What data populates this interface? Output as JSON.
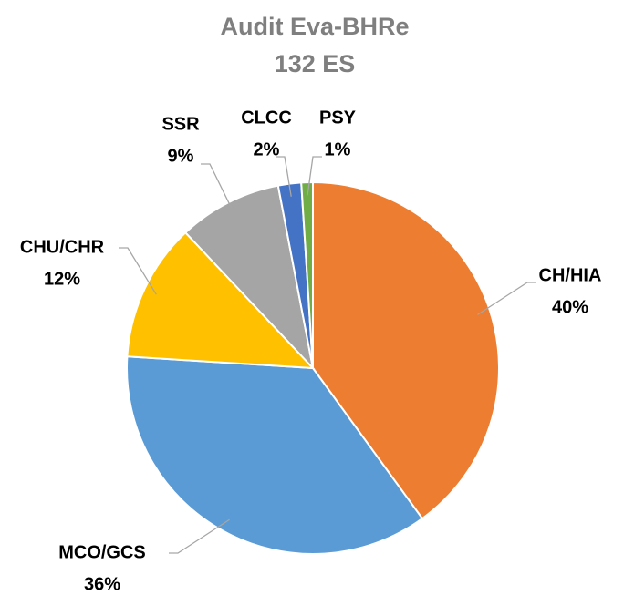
{
  "chart_data": {
    "type": "pie",
    "title": "Audit Eva-BHRe",
    "subtitle": "132 ES",
    "categories": [
      "CH/HIA",
      "MCO/GCS",
      "CHU/CHR",
      "SSR",
      "CLCC",
      "PSY"
    ],
    "values": [
      40,
      36,
      12,
      9,
      2,
      1
    ],
    "value_labels": [
      "40%",
      "36%",
      "12%",
      "9%",
      "2%",
      "1%"
    ],
    "colors": [
      "#ED7D31",
      "#5B9BD5",
      "#FFC000",
      "#A5A5A5",
      "#4472C4",
      "#70AD47"
    ]
  }
}
